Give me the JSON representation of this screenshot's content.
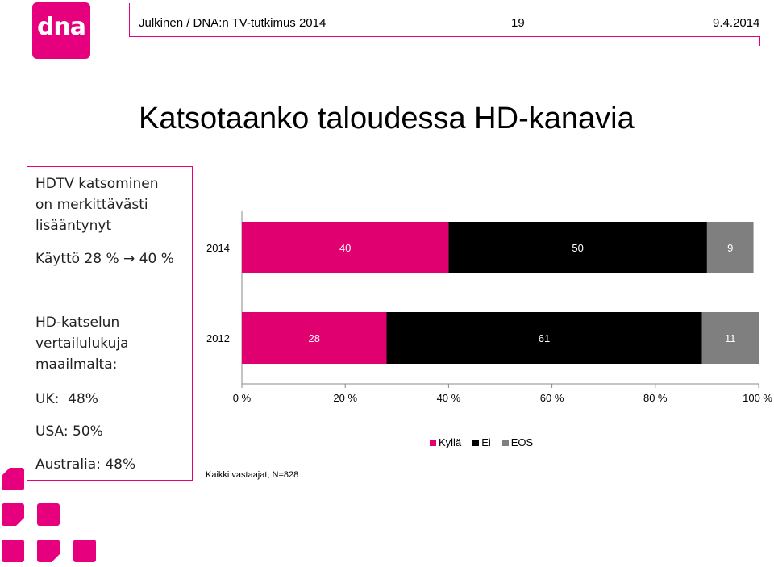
{
  "header": {
    "left_text": "Julkinen / DNA:n TV-tutkimus 2014",
    "page_number": "19",
    "date": "9.4.2014"
  },
  "logo": {
    "text": "dna"
  },
  "title": "Katsotaanko taloudessa HD-kanavia",
  "left_panel": {
    "lines_a": [
      "HDTV katsominen",
      "on merkittävästi",
      "lisääntynyt"
    ],
    "usage": "Käyttö 28 % → 40 %",
    "lines_b": [
      "HD-katselun",
      "vertailulukuja",
      "maailmalta:"
    ],
    "uk": "UK:  48%",
    "usa": "USA: 50%",
    "australia": "Australia: 48%"
  },
  "footnote": "Kaikki vastaajat, N=828",
  "colors": {
    "brand": "#e6007e",
    "kylla": "#e0006f",
    "ei": "#000000",
    "eos": "#7f7f7f"
  },
  "chart_data": {
    "type": "bar",
    "orientation": "horizontal",
    "stacked": true,
    "categories": [
      "2014",
      "2012"
    ],
    "series": [
      {
        "name": "Kyllä",
        "values": [
          40,
          28
        ]
      },
      {
        "name": "Ei",
        "values": [
          50,
          61
        ]
      },
      {
        "name": "EOS",
        "values": [
          9,
          11
        ]
      }
    ],
    "x_ticks": [
      "0 %",
      "20 %",
      "40 %",
      "60 %",
      "80 %",
      "100 %"
    ],
    "xlim": [
      0,
      100
    ],
    "grid": false,
    "legend_position": "bottom"
  }
}
